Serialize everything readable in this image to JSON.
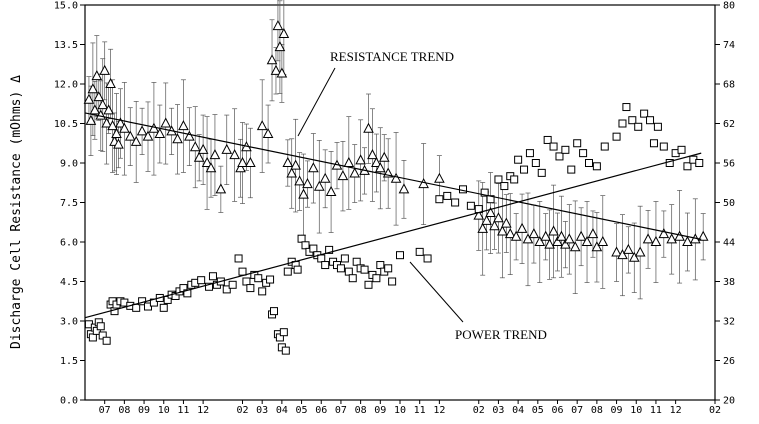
{
  "chart_data": {
    "type": "scatter",
    "ylabel": "Discharge Cell Resistance (mOhms) Δ",
    "ylim": [
      0,
      15
    ],
    "y2lim": [
      20,
      80
    ],
    "y_ticks": [
      "0.0",
      "1.5",
      "3.0",
      "4.5",
      "6.0",
      "7.5",
      "9.0",
      "10.5",
      "12.0",
      "13.5",
      "15.0"
    ],
    "y2_ticks": [
      "20",
      "26",
      "32",
      "38",
      "44",
      "50",
      "56",
      "62",
      "68",
      "74",
      "80"
    ],
    "x_ticks": [
      "07",
      "08",
      "09",
      "10",
      "11",
      "12",
      "02",
      "03",
      "04",
      "05",
      "06",
      "07",
      "08",
      "09",
      "10",
      "11",
      "12",
      "02",
      "03",
      "04",
      "05",
      "06",
      "07",
      "08",
      "09",
      "10",
      "11",
      "12",
      "02"
    ],
    "x_tick_pos": [
      1,
      2,
      3,
      4,
      5,
      6,
      8,
      9,
      10,
      11,
      12,
      13,
      14,
      15,
      16,
      17,
      18,
      20,
      21,
      22,
      23,
      24,
      25,
      26,
      27,
      28,
      29,
      30,
      32
    ],
    "xlim": [
      0,
      32
    ],
    "annotations": [
      "RESISTANCE TREND",
      "POWER TREND"
    ],
    "series": [
      {
        "marker": "triangle",
        "axis": "left",
        "points": [
          [
            0.2,
            11.4
          ],
          [
            0.3,
            10.6
          ],
          [
            0.4,
            11.8
          ],
          [
            0.5,
            11.0
          ],
          [
            0.6,
            12.3
          ],
          [
            0.7,
            11.5
          ],
          [
            0.8,
            10.8
          ],
          [
            0.9,
            11.2
          ],
          [
            1.0,
            12.5
          ],
          [
            1.1,
            10.5
          ],
          [
            1.2,
            11.0
          ],
          [
            1.3,
            12.0
          ],
          [
            1.4,
            10.4
          ],
          [
            1.5,
            9.8
          ],
          [
            1.6,
            10.1
          ],
          [
            1.7,
            9.7
          ],
          [
            1.8,
            10.5
          ],
          [
            2.0,
            10.3
          ],
          [
            2.3,
            10.0
          ],
          [
            2.6,
            9.8
          ],
          [
            2.9,
            10.2
          ],
          [
            3.2,
            10.0
          ],
          [
            3.5,
            10.3
          ],
          [
            3.8,
            10.1
          ],
          [
            4.1,
            10.5
          ],
          [
            4.4,
            10.2
          ],
          [
            4.7,
            9.9
          ],
          [
            5.0,
            10.4
          ],
          [
            5.3,
            10.0
          ],
          [
            5.6,
            9.6
          ],
          [
            5.8,
            9.2
          ],
          [
            6.0,
            9.5
          ],
          [
            6.2,
            9.0
          ],
          [
            6.4,
            8.8
          ],
          [
            6.6,
            9.3
          ],
          [
            6.9,
            8.0
          ],
          [
            7.2,
            9.5
          ],
          [
            7.6,
            9.3
          ],
          [
            7.9,
            8.8
          ],
          [
            8.0,
            9.0
          ],
          [
            8.2,
            9.6
          ],
          [
            8.4,
            9.0
          ],
          [
            9.0,
            10.4
          ],
          [
            9.3,
            10.1
          ],
          [
            9.5,
            12.9
          ],
          [
            9.7,
            12.5
          ],
          [
            9.8,
            14.2
          ],
          [
            9.9,
            13.4
          ],
          [
            10.0,
            12.4
          ],
          [
            10.1,
            13.9
          ],
          [
            10.3,
            9.0
          ],
          [
            10.5,
            8.6
          ],
          [
            10.7,
            8.9
          ],
          [
            10.9,
            8.3
          ],
          [
            11.1,
            7.8
          ],
          [
            11.3,
            8.2
          ],
          [
            11.6,
            8.8
          ],
          [
            11.9,
            8.1
          ],
          [
            12.2,
            8.4
          ],
          [
            12.5,
            7.9
          ],
          [
            12.8,
            8.9
          ],
          [
            13.1,
            8.5
          ],
          [
            13.4,
            9.0
          ],
          [
            13.7,
            8.6
          ],
          [
            14.0,
            9.1
          ],
          [
            14.2,
            8.7
          ],
          [
            14.4,
            10.3
          ],
          [
            14.6,
            9.3
          ],
          [
            14.8,
            9.0
          ],
          [
            15.0,
            8.8
          ],
          [
            15.2,
            9.2
          ],
          [
            15.4,
            8.6
          ],
          [
            15.8,
            8.4
          ],
          [
            16.2,
            8.0
          ],
          [
            17.2,
            8.2
          ],
          [
            18.0,
            8.4
          ],
          [
            20.0,
            7.0
          ],
          [
            20.2,
            6.5
          ],
          [
            20.4,
            6.8
          ],
          [
            20.6,
            7.1
          ],
          [
            20.8,
            6.6
          ],
          [
            21.0,
            6.9
          ],
          [
            21.2,
            6.4
          ],
          [
            21.4,
            6.7
          ],
          [
            21.6,
            6.3
          ],
          [
            21.9,
            6.2
          ],
          [
            22.2,
            6.5
          ],
          [
            22.5,
            6.1
          ],
          [
            22.8,
            6.3
          ],
          [
            23.1,
            6.0
          ],
          [
            23.4,
            6.2
          ],
          [
            23.6,
            5.9
          ],
          [
            23.8,
            6.4
          ],
          [
            24.0,
            6.0
          ],
          [
            24.2,
            6.2
          ],
          [
            24.4,
            5.9
          ],
          [
            24.6,
            6.1
          ],
          [
            24.9,
            5.8
          ],
          [
            25.2,
            6.2
          ],
          [
            25.5,
            6.0
          ],
          [
            25.8,
            6.3
          ],
          [
            26.0,
            5.8
          ],
          [
            26.3,
            6.0
          ],
          [
            27.0,
            5.6
          ],
          [
            27.3,
            5.5
          ],
          [
            27.6,
            5.7
          ],
          [
            27.9,
            5.4
          ],
          [
            28.2,
            5.6
          ],
          [
            28.6,
            6.1
          ],
          [
            29.0,
            6.0
          ],
          [
            29.4,
            6.3
          ],
          [
            29.8,
            6.1
          ],
          [
            30.2,
            6.2
          ],
          [
            30.6,
            6.0
          ],
          [
            31.0,
            6.1
          ],
          [
            31.4,
            6.2
          ]
        ]
      },
      {
        "marker": "square",
        "axis": "right",
        "points": [
          [
            0.2,
            31.5
          ],
          [
            0.3,
            30.0
          ],
          [
            0.4,
            29.5
          ],
          [
            0.5,
            31.0
          ],
          [
            0.6,
            30.5
          ],
          [
            0.7,
            31.8
          ],
          [
            0.8,
            31.2
          ],
          [
            0.9,
            29.8
          ],
          [
            1.1,
            29.0
          ],
          [
            1.3,
            34.5
          ],
          [
            1.4,
            35.0
          ],
          [
            1.5,
            33.5
          ],
          [
            1.6,
            34.5
          ],
          [
            1.8,
            35.0
          ],
          [
            2.0,
            34.8
          ],
          [
            2.3,
            34.3
          ],
          [
            2.6,
            34.0
          ],
          [
            2.9,
            35.0
          ],
          [
            3.2,
            34.2
          ],
          [
            3.5,
            34.8
          ],
          [
            3.8,
            35.5
          ],
          [
            4.0,
            34.0
          ],
          [
            4.2,
            35.2
          ],
          [
            4.4,
            36.0
          ],
          [
            4.6,
            35.8
          ],
          [
            4.8,
            36.5
          ],
          [
            5.0,
            37.0
          ],
          [
            5.2,
            36.2
          ],
          [
            5.4,
            37.5
          ],
          [
            5.6,
            37.8
          ],
          [
            5.9,
            38.2
          ],
          [
            6.3,
            37.2
          ],
          [
            6.5,
            38.8
          ],
          [
            6.7,
            37.5
          ],
          [
            6.9,
            38.0
          ],
          [
            7.2,
            36.8
          ],
          [
            7.5,
            37.5
          ],
          [
            7.8,
            41.5
          ],
          [
            8.0,
            39.5
          ],
          [
            8.2,
            38.0
          ],
          [
            8.4,
            37.0
          ],
          [
            8.6,
            39.0
          ],
          [
            8.8,
            38.5
          ],
          [
            9.0,
            36.5
          ],
          [
            9.2,
            37.8
          ],
          [
            9.4,
            38.3
          ],
          [
            9.5,
            33.0
          ],
          [
            9.6,
            33.5
          ],
          [
            9.8,
            30.0
          ],
          [
            9.9,
            29.5
          ],
          [
            10.0,
            28.0
          ],
          [
            10.1,
            30.3
          ],
          [
            10.2,
            27.5
          ],
          [
            10.3,
            39.5
          ],
          [
            10.5,
            41.0
          ],
          [
            10.7,
            40.5
          ],
          [
            10.8,
            39.8
          ],
          [
            11.0,
            44.5
          ],
          [
            11.2,
            43.5
          ],
          [
            11.4,
            42.5
          ],
          [
            11.6,
            43.0
          ],
          [
            11.8,
            42.0
          ],
          [
            12.0,
            41.5
          ],
          [
            12.2,
            40.5
          ],
          [
            12.4,
            42.8
          ],
          [
            12.6,
            41.0
          ],
          [
            12.8,
            40.5
          ],
          [
            13.0,
            40.0
          ],
          [
            13.2,
            41.5
          ],
          [
            13.4,
            39.5
          ],
          [
            13.6,
            38.5
          ],
          [
            13.8,
            41.0
          ],
          [
            14.0,
            40.0
          ],
          [
            14.2,
            39.8
          ],
          [
            14.4,
            37.5
          ],
          [
            14.6,
            39.0
          ],
          [
            14.8,
            38.5
          ],
          [
            15.0,
            40.5
          ],
          [
            15.2,
            39.5
          ],
          [
            15.4,
            40.0
          ],
          [
            15.6,
            38.0
          ],
          [
            16.0,
            42.0
          ],
          [
            17.0,
            42.5
          ],
          [
            17.4,
            41.5
          ],
          [
            18.0,
            50.5
          ],
          [
            18.4,
            51.0
          ],
          [
            18.8,
            50.0
          ],
          [
            19.2,
            52.0
          ],
          [
            19.6,
            49.5
          ],
          [
            20.0,
            49.0
          ],
          [
            20.3,
            51.5
          ],
          [
            20.6,
            50.5
          ],
          [
            21.0,
            53.5
          ],
          [
            21.3,
            52.5
          ],
          [
            21.6,
            54.0
          ],
          [
            21.8,
            53.5
          ],
          [
            22.0,
            56.5
          ],
          [
            22.3,
            55.0
          ],
          [
            22.6,
            57.5
          ],
          [
            22.9,
            56.0
          ],
          [
            23.2,
            54.5
          ],
          [
            23.5,
            59.5
          ],
          [
            23.8,
            58.5
          ],
          [
            24.1,
            57.0
          ],
          [
            24.4,
            58.0
          ],
          [
            24.7,
            55.0
          ],
          [
            25.0,
            59.0
          ],
          [
            25.3,
            57.5
          ],
          [
            25.6,
            56.0
          ],
          [
            26.0,
            55.5
          ],
          [
            26.4,
            58.5
          ],
          [
            27.0,
            60.0
          ],
          [
            27.3,
            62.0
          ],
          [
            27.5,
            64.5
          ],
          [
            27.8,
            62.5
          ],
          [
            28.1,
            61.5
          ],
          [
            28.4,
            63.5
          ],
          [
            28.7,
            62.5
          ],
          [
            28.9,
            59.0
          ],
          [
            29.1,
            61.5
          ],
          [
            29.4,
            58.5
          ],
          [
            29.7,
            56.0
          ],
          [
            30.0,
            57.5
          ],
          [
            30.3,
            58.0
          ],
          [
            30.6,
            55.5
          ],
          [
            30.9,
            56.5
          ],
          [
            31.2,
            56.0
          ]
        ]
      }
    ],
    "trend_lines": [
      {
        "name": "RESISTANCE TREND",
        "axis": "left",
        "from": [
          0,
          10.9
        ],
        "to": [
          31.3,
          6.1
        ]
      },
      {
        "name": "POWER TREND",
        "axis": "right",
        "from": [
          0,
          32.5
        ],
        "to": [
          31.3,
          57.5
        ]
      }
    ]
  }
}
